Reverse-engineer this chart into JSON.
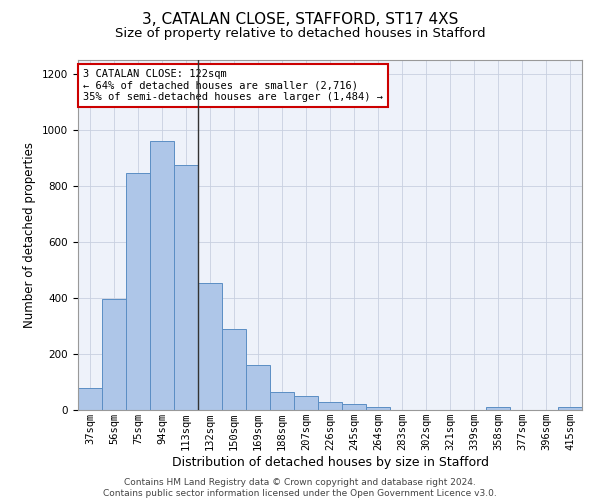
{
  "title": "3, CATALAN CLOSE, STAFFORD, ST17 4XS",
  "subtitle": "Size of property relative to detached houses in Stafford",
  "xlabel": "Distribution of detached houses by size in Stafford",
  "ylabel": "Number of detached properties",
  "categories": [
    "37sqm",
    "56sqm",
    "75sqm",
    "94sqm",
    "113sqm",
    "132sqm",
    "150sqm",
    "169sqm",
    "188sqm",
    "207sqm",
    "226sqm",
    "245sqm",
    "264sqm",
    "283sqm",
    "302sqm",
    "321sqm",
    "339sqm",
    "358sqm",
    "377sqm",
    "396sqm",
    "415sqm"
  ],
  "values": [
    80,
    395,
    845,
    960,
    875,
    455,
    290,
    160,
    65,
    50,
    30,
    20,
    10,
    0,
    0,
    0,
    0,
    10,
    0,
    0,
    10
  ],
  "bar_color": "#aec6e8",
  "bar_edge_color": "#5b8ec4",
  "highlight_index": 4,
  "highlight_line_color": "#333333",
  "annotation_line1": "3 CATALAN CLOSE: 122sqm",
  "annotation_line2": "← 64% of detached houses are smaller (2,716)",
  "annotation_line3": "35% of semi-detached houses are larger (1,484) →",
  "annotation_box_color": "#cc0000",
  "ylim": [
    0,
    1250
  ],
  "yticks": [
    0,
    200,
    400,
    600,
    800,
    1000,
    1200
  ],
  "grid_color": "#c8d0e0",
  "background_color": "#eef2fa",
  "footer_line1": "Contains HM Land Registry data © Crown copyright and database right 2024.",
  "footer_line2": "Contains public sector information licensed under the Open Government Licence v3.0.",
  "title_fontsize": 11,
  "subtitle_fontsize": 9.5,
  "xlabel_fontsize": 9,
  "ylabel_fontsize": 8.5,
  "tick_fontsize": 7.5,
  "footer_fontsize": 6.5
}
